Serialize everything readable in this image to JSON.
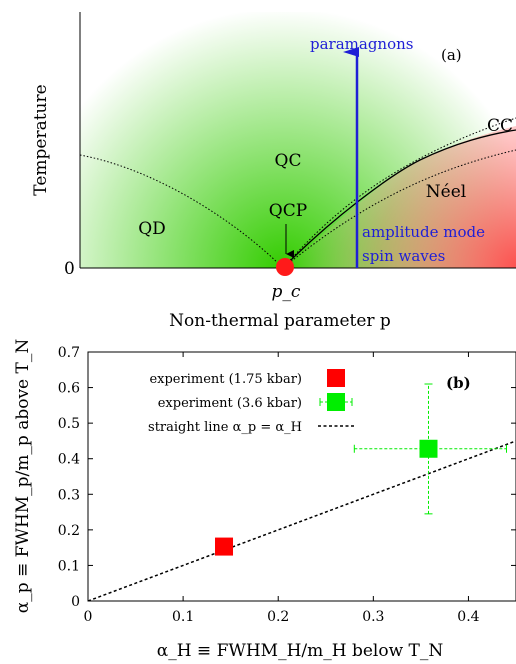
{
  "chart_data": [
    {
      "type": "diagram",
      "panel_label": "(a)",
      "xlabel": "Non-thermal parameter p",
      "ylabel": "Temperature",
      "origin_label": "0",
      "regions": [
        {
          "label": "QD"
        },
        {
          "label": "QC"
        },
        {
          "label": "QCP"
        },
        {
          "label": "Néel"
        },
        {
          "label": "CC"
        }
      ],
      "critical_point_label": "p_c",
      "arrow_label": "paramagnons",
      "mode_labels": [
        "amplitude mode",
        "spin waves"
      ],
      "colors": {
        "green": "#33cc00",
        "red": "#ff3b3b",
        "blue": "#1f1fd6"
      }
    },
    {
      "type": "scatter",
      "panel_label": "(b)",
      "xlabel": "α_H ≡ FWHM_H/m_H below T_N",
      "ylabel": "α_p ≡ FWHM_p/m_p above T_N",
      "xlim": [
        0,
        0.45
      ],
      "ylim": [
        0,
        0.7
      ],
      "xticks": [
        0,
        0.1,
        0.2,
        0.3,
        0.4
      ],
      "yticks": [
        0,
        0.1,
        0.2,
        0.3,
        0.4,
        0.5,
        0.6,
        0.7
      ],
      "legend_position": "top-left",
      "series": [
        {
          "name": "experiment (1.75 kbar)",
          "color": "#ff0000",
          "points": [
            {
              "x": 0.143,
              "y": 0.153
            }
          ]
        },
        {
          "name": "experiment (3.6 kbar)",
          "color": "#00ee00",
          "points": [
            {
              "x": 0.358,
              "y": 0.428,
              "xerr": [
                0.28,
                0.44
              ],
              "yerr": [
                0.245,
                0.61
              ]
            }
          ]
        },
        {
          "name": "straight line α_p = α_H",
          "color": "#000000",
          "style": "dashed",
          "points": [
            {
              "x": 0,
              "y": 0
            },
            {
              "x": 0.45,
              "y": 0.45
            }
          ]
        }
      ]
    }
  ]
}
